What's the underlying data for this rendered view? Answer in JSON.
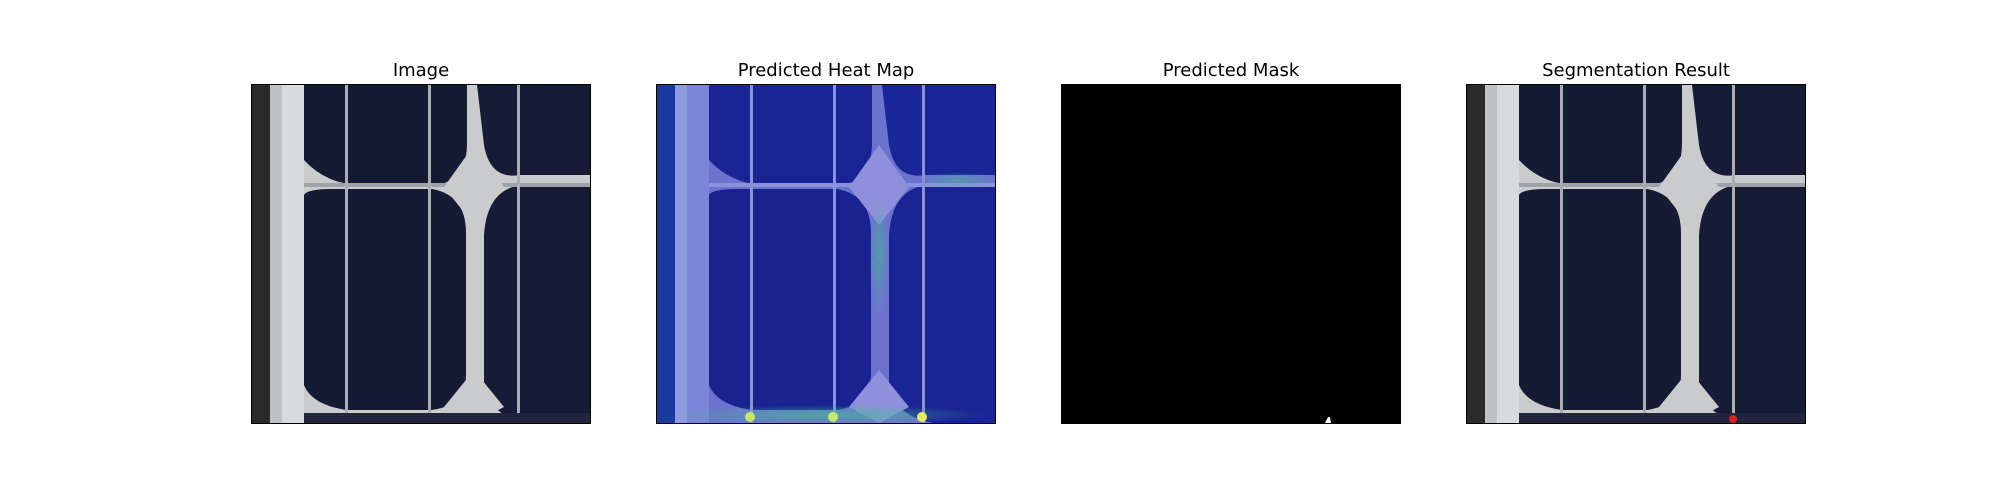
{
  "panels": [
    {
      "title": "Image",
      "icon": "solar-cell-photo"
    },
    {
      "title": "Predicted Heat Map",
      "icon": "heat-map-overlay"
    },
    {
      "title": "Predicted Mask",
      "icon": "binary-mask"
    },
    {
      "title": "Segmentation Result",
      "icon": "segmentation-overlay"
    }
  ],
  "colors": {
    "cell": "#151a33",
    "busbar": "#9aa0a8",
    "frame_light": "#cfd2d6",
    "heat_base": "#1a2a8c",
    "heat_hot": "#3fbf8a",
    "mask_bg": "#000000",
    "mask_fg": "#ffffff",
    "defect": "#e0201a"
  }
}
